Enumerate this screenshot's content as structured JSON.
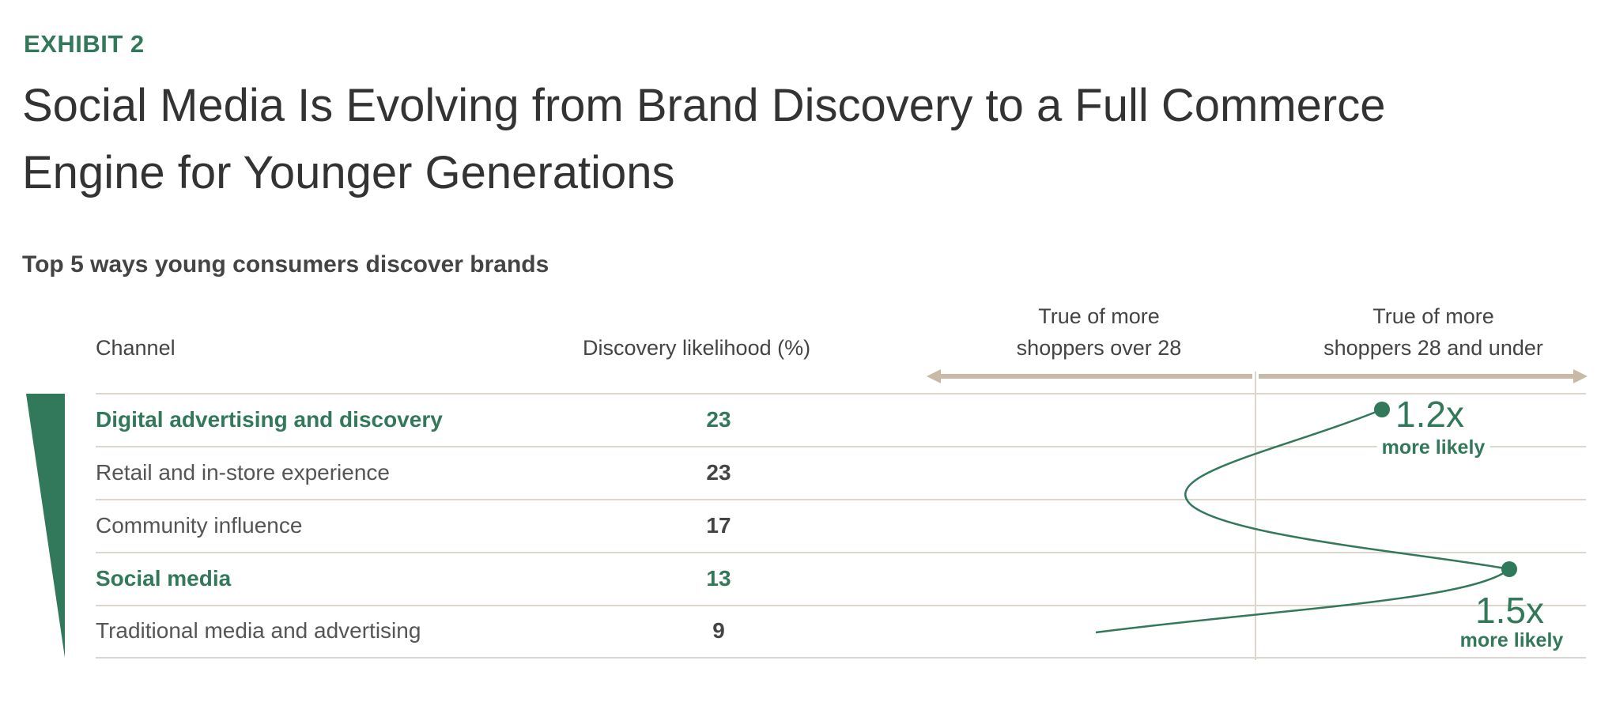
{
  "exhibit": "EXHIBIT 2",
  "title_lines": [
    "Social Media Is Evolving from Brand Discovery to a Full Commerce",
    "Engine for Younger Generations"
  ],
  "subtitle": "Top 5 ways young consumers discover brands",
  "colors": {
    "accent": "#32785a",
    "arrow": "#c9b9a7",
    "grid": "#ddd6cc"
  },
  "chart_data": {
    "type": "table",
    "title": "Top 5 ways young consumers discover brands",
    "columns": [
      "Channel",
      "Discovery likelihood (%)"
    ],
    "direction_labels": {
      "left": "True of more shoppers over 28",
      "right": "True of more shoppers 28 and under"
    },
    "direction_lines": {
      "left": [
        "True of more",
        "shoppers over 28"
      ],
      "right": [
        "True of more",
        "shoppers 28 and under"
      ]
    },
    "rows": [
      {
        "channel": "Digital advertising and discovery",
        "value": 23,
        "highlight": true,
        "multiplier": "1.2x",
        "multiplier_note": "more likely",
        "lean": 0.4
      },
      {
        "channel": "Retail and in-store experience",
        "value": 23,
        "highlight": false,
        "lean": -0.25
      },
      {
        "channel": "Community influence",
        "value": 17,
        "highlight": false,
        "lean": 0.1
      },
      {
        "channel": "Social media",
        "value": 13,
        "highlight": true,
        "multiplier": "1.5x",
        "multiplier_note": "more likely",
        "lean": 0.75
      },
      {
        "channel": "Traditional media and advertising",
        "value": 9,
        "highlight": false,
        "lean": -0.5
      }
    ]
  }
}
